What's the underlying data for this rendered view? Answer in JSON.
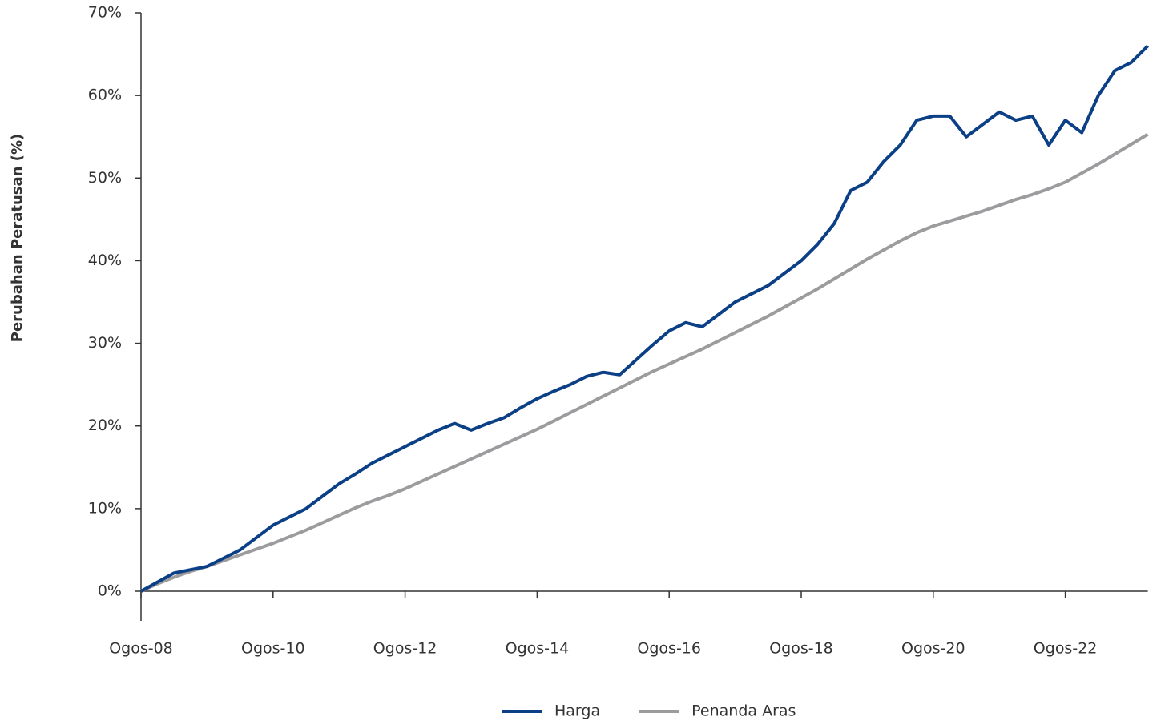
{
  "chart_data": {
    "type": "line",
    "ylabel": "Perubahan Peratusan (%)",
    "categories": [
      "Ogos-08",
      null,
      null,
      null,
      null,
      null,
      null,
      null,
      "Ogos-10",
      null,
      null,
      null,
      null,
      null,
      null,
      null,
      "Ogos-12",
      null,
      null,
      null,
      null,
      null,
      null,
      null,
      "Ogos-14",
      null,
      null,
      null,
      null,
      null,
      null,
      null,
      "Ogos-16",
      null,
      null,
      null,
      null,
      null,
      null,
      null,
      "Ogos-18",
      null,
      null,
      null,
      null,
      null,
      null,
      null,
      "Ogos-20",
      null,
      null,
      null,
      null,
      null,
      null,
      null,
      "Ogos-22",
      null,
      null,
      null,
      null,
      null
    ],
    "series": [
      {
        "name": "Harga",
        "color": "#0b3f86",
        "values": [
          0,
          1.1,
          2.2,
          2.6,
          3.0,
          4.0,
          5.0,
          6.5,
          8.0,
          9.0,
          10.0,
          11.5,
          13.0,
          14.2,
          15.5,
          16.5,
          17.5,
          18.5,
          19.5,
          20.3,
          19.5,
          20.3,
          21.0,
          22.2,
          23.3,
          24.2,
          25.0,
          26.0,
          26.5,
          26.2,
          28.0,
          29.8,
          31.5,
          32.5,
          32.0,
          33.5,
          35.0,
          36.0,
          37.0,
          38.5,
          40.0,
          42.0,
          44.5,
          48.5,
          49.5,
          52.0,
          54.0,
          57.0,
          57.5,
          57.5,
          55.0,
          56.5,
          58.0,
          57.0,
          57.5,
          54.0,
          57.0,
          55.5,
          60.0,
          63.0,
          64.0,
          66.0
        ]
      },
      {
        "name": "Penanda Aras",
        "color": "#9c9c9f",
        "values": [
          0,
          0.9,
          1.7,
          2.4,
          3.0,
          3.7,
          4.4,
          5.1,
          5.8,
          6.6,
          7.4,
          8.3,
          9.2,
          10.1,
          10.9,
          11.6,
          12.4,
          13.3,
          14.2,
          15.1,
          16.0,
          16.9,
          17.8,
          18.7,
          19.6,
          20.6,
          21.6,
          22.6,
          23.6,
          24.6,
          25.6,
          26.6,
          27.5,
          28.4,
          29.3,
          30.3,
          31.3,
          32.3,
          33.3,
          34.4,
          35.5,
          36.6,
          37.8,
          39.0,
          40.2,
          41.3,
          42.4,
          43.4,
          44.2,
          44.8,
          45.4,
          46.0,
          46.7,
          47.4,
          48.0,
          48.7,
          49.5,
          50.6,
          51.7,
          52.9,
          54.1,
          55.3
        ]
      }
    ],
    "ylim": [
      0,
      70
    ],
    "yticks": [
      {
        "value": 0,
        "label": "0%"
      },
      {
        "value": 10,
        "label": "10%"
      },
      {
        "value": 20,
        "label": "20%"
      },
      {
        "value": 30,
        "label": "30%"
      },
      {
        "value": 40,
        "label": "40%"
      },
      {
        "value": 50,
        "label": "50%"
      },
      {
        "value": 60,
        "label": "60%"
      },
      {
        "value": 70,
        "label": "70%"
      }
    ],
    "legend": "bottom"
  }
}
